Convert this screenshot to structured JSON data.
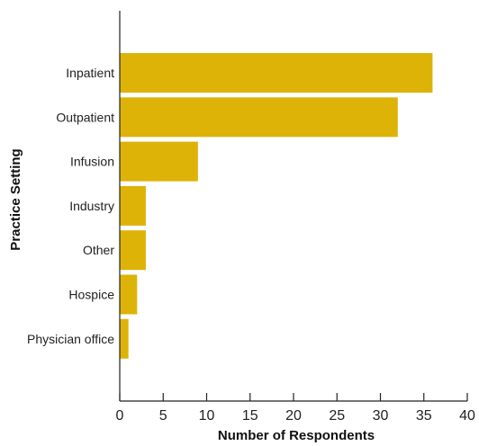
{
  "chart_data": {
    "type": "bar",
    "orientation": "horizontal",
    "title": "",
    "xlabel": "Number of Respondents",
    "ylabel": "Practice Setting",
    "categories": [
      "Inpatient",
      "Outpatient",
      "Infusion",
      "Industry",
      "Other",
      "Hospice",
      "Physician office"
    ],
    "values": [
      36,
      32,
      9,
      3,
      3,
      2,
      1
    ],
    "xlim": [
      0,
      40
    ],
    "xticks": [
      "0",
      "5",
      "10",
      "15",
      "20",
      "25",
      "30",
      "35",
      "40"
    ],
    "grid": false,
    "legend": "none",
    "bar_color": "#DDB308",
    "axis_color": "#222222"
  }
}
